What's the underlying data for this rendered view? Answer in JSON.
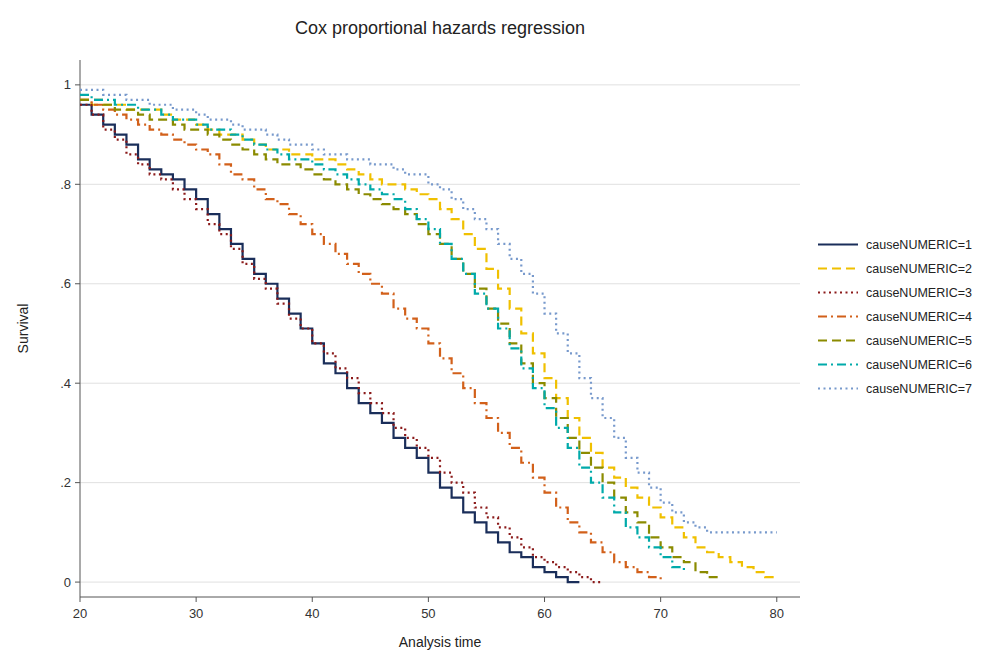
{
  "chart_data": {
    "type": "step",
    "title": "Cox proportional hazards regression",
    "x_label": "Analysis time",
    "y_label": "Survival",
    "xlim": [
      20,
      82
    ],
    "ylim": [
      -0.03,
      1.05
    ],
    "xticks": [
      20,
      30,
      40,
      50,
      60,
      70,
      80
    ],
    "yticks": [
      0,
      {
        "value": 0.2,
        "label": ".2"
      },
      {
        "value": 0.4,
        "label": ".4"
      },
      {
        "value": 0.6,
        "label": ".6"
      },
      {
        "value": 0.8,
        "label": ".8"
      },
      1
    ],
    "grid": true,
    "legend": "right",
    "series": [
      {
        "name": "causeNUMERIC=1",
        "color": "#1a2e5a",
        "line_style": "solid",
        "x": [
          20,
          21,
          22,
          23,
          24,
          25,
          26,
          27,
          28,
          29,
          30,
          31,
          32,
          33,
          34,
          35,
          36,
          37,
          38,
          39,
          40,
          41,
          42,
          43,
          44,
          45,
          46,
          47,
          48,
          49,
          50,
          51,
          52,
          53,
          54,
          55,
          56,
          57,
          58,
          59,
          60,
          61,
          62,
          63
        ],
        "values": [
          0.96,
          0.94,
          0.92,
          0.9,
          0.88,
          0.85,
          0.83,
          0.82,
          0.81,
          0.79,
          0.77,
          0.74,
          0.71,
          0.68,
          0.65,
          0.62,
          0.6,
          0.57,
          0.54,
          0.51,
          0.48,
          0.44,
          0.42,
          0.39,
          0.36,
          0.34,
          0.32,
          0.29,
          0.27,
          0.25,
          0.22,
          0.19,
          0.17,
          0.14,
          0.12,
          0.1,
          0.08,
          0.06,
          0.05,
          0.03,
          0.02,
          0.01,
          0.0,
          0.0
        ]
      },
      {
        "name": "causeNUMERIC=2",
        "color": "#f0c000",
        "line_style": "dashed",
        "x": [
          20,
          21,
          22,
          23,
          24,
          25,
          26,
          27,
          28,
          29,
          30,
          31,
          32,
          33,
          34,
          35,
          36,
          37,
          38,
          39,
          40,
          41,
          42,
          43,
          44,
          45,
          46,
          47,
          48,
          49,
          50,
          51,
          52,
          53,
          54,
          55,
          56,
          57,
          58,
          59,
          60,
          61,
          62,
          63,
          64,
          65,
          66,
          67,
          68,
          69,
          70,
          71,
          72,
          73,
          74,
          75,
          76,
          77,
          78,
          79,
          80
        ],
        "values": [
          0.97,
          0.96,
          0.96,
          0.96,
          0.95,
          0.95,
          0.95,
          0.94,
          0.93,
          0.93,
          0.92,
          0.91,
          0.9,
          0.9,
          0.89,
          0.88,
          0.87,
          0.87,
          0.86,
          0.86,
          0.85,
          0.85,
          0.84,
          0.83,
          0.82,
          0.81,
          0.8,
          0.8,
          0.79,
          0.78,
          0.77,
          0.75,
          0.73,
          0.7,
          0.67,
          0.63,
          0.59,
          0.55,
          0.5,
          0.46,
          0.41,
          0.37,
          0.33,
          0.29,
          0.26,
          0.23,
          0.21,
          0.19,
          0.17,
          0.15,
          0.13,
          0.11,
          0.09,
          0.07,
          0.06,
          0.05,
          0.04,
          0.03,
          0.02,
          0.01,
          0.01
        ]
      },
      {
        "name": "causeNUMERIC=3",
        "color": "#8b1a1a",
        "line_style": "dotted",
        "x": [
          20,
          21,
          22,
          23,
          24,
          25,
          26,
          27,
          28,
          29,
          30,
          31,
          32,
          33,
          34,
          35,
          36,
          37,
          38,
          39,
          40,
          41,
          42,
          43,
          44,
          45,
          46,
          47,
          48,
          49,
          50,
          51,
          52,
          53,
          54,
          55,
          56,
          57,
          58,
          59,
          60,
          61,
          62,
          63,
          64,
          65
        ],
        "values": [
          0.96,
          0.94,
          0.91,
          0.89,
          0.86,
          0.84,
          0.82,
          0.81,
          0.79,
          0.77,
          0.75,
          0.72,
          0.7,
          0.67,
          0.64,
          0.61,
          0.59,
          0.56,
          0.53,
          0.51,
          0.48,
          0.46,
          0.43,
          0.41,
          0.38,
          0.36,
          0.34,
          0.31,
          0.29,
          0.27,
          0.25,
          0.22,
          0.2,
          0.18,
          0.15,
          0.13,
          0.11,
          0.09,
          0.07,
          0.05,
          0.04,
          0.03,
          0.02,
          0.01,
          0.0,
          0.0
        ]
      },
      {
        "name": "causeNUMERIC=4",
        "color": "#d2601a",
        "line_style": "dashdot",
        "x": [
          20,
          21,
          22,
          23,
          24,
          25,
          26,
          27,
          28,
          29,
          30,
          31,
          32,
          33,
          34,
          35,
          36,
          37,
          38,
          39,
          40,
          41,
          42,
          43,
          44,
          45,
          46,
          47,
          48,
          49,
          50,
          51,
          52,
          53,
          54,
          55,
          56,
          57,
          58,
          59,
          60,
          61,
          62,
          63,
          64,
          65,
          66,
          67,
          68,
          69,
          70
        ],
        "values": [
          0.97,
          0.96,
          0.95,
          0.94,
          0.93,
          0.92,
          0.91,
          0.9,
          0.89,
          0.88,
          0.87,
          0.86,
          0.84,
          0.82,
          0.81,
          0.79,
          0.77,
          0.76,
          0.74,
          0.72,
          0.7,
          0.68,
          0.66,
          0.64,
          0.62,
          0.6,
          0.58,
          0.55,
          0.53,
          0.51,
          0.48,
          0.45,
          0.42,
          0.39,
          0.36,
          0.33,
          0.3,
          0.27,
          0.24,
          0.21,
          0.18,
          0.15,
          0.12,
          0.1,
          0.08,
          0.06,
          0.04,
          0.03,
          0.02,
          0.01,
          0.0
        ]
      },
      {
        "name": "causeNUMERIC=5",
        "color": "#8b8b00",
        "line_style": "dashed",
        "x": [
          20,
          21,
          22,
          23,
          24,
          25,
          26,
          27,
          28,
          29,
          30,
          31,
          32,
          33,
          34,
          35,
          36,
          37,
          38,
          39,
          40,
          41,
          42,
          43,
          44,
          45,
          46,
          47,
          48,
          49,
          50,
          51,
          52,
          53,
          54,
          55,
          56,
          57,
          58,
          59,
          60,
          61,
          62,
          63,
          64,
          65,
          66,
          67,
          68,
          69,
          70,
          71,
          72,
          73,
          74,
          75
        ],
        "values": [
          0.97,
          0.97,
          0.96,
          0.95,
          0.95,
          0.94,
          0.93,
          0.93,
          0.92,
          0.91,
          0.91,
          0.9,
          0.89,
          0.88,
          0.87,
          0.86,
          0.85,
          0.84,
          0.84,
          0.83,
          0.82,
          0.81,
          0.8,
          0.79,
          0.78,
          0.77,
          0.76,
          0.75,
          0.74,
          0.72,
          0.7,
          0.68,
          0.65,
          0.62,
          0.59,
          0.55,
          0.52,
          0.48,
          0.44,
          0.4,
          0.37,
          0.33,
          0.29,
          0.26,
          0.23,
          0.2,
          0.17,
          0.14,
          0.12,
          0.09,
          0.07,
          0.05,
          0.04,
          0.02,
          0.01,
          0.01
        ]
      },
      {
        "name": "causeNUMERIC=6",
        "color": "#00aaaa",
        "line_style": "dashdot",
        "x": [
          20,
          21,
          22,
          23,
          24,
          25,
          26,
          27,
          28,
          29,
          30,
          31,
          32,
          33,
          34,
          35,
          36,
          37,
          38,
          39,
          40,
          41,
          42,
          43,
          44,
          45,
          46,
          47,
          48,
          49,
          50,
          51,
          52,
          53,
          54,
          55,
          56,
          57,
          58,
          59,
          60,
          61,
          62,
          63,
          64,
          65,
          66,
          67,
          68,
          69,
          70,
          71,
          72
        ],
        "values": [
          0.98,
          0.97,
          0.97,
          0.96,
          0.96,
          0.95,
          0.95,
          0.94,
          0.93,
          0.93,
          0.92,
          0.91,
          0.91,
          0.9,
          0.89,
          0.88,
          0.87,
          0.86,
          0.85,
          0.85,
          0.84,
          0.83,
          0.82,
          0.81,
          0.8,
          0.79,
          0.78,
          0.77,
          0.75,
          0.73,
          0.71,
          0.68,
          0.65,
          0.62,
          0.58,
          0.55,
          0.51,
          0.47,
          0.43,
          0.39,
          0.35,
          0.31,
          0.27,
          0.23,
          0.2,
          0.17,
          0.14,
          0.11,
          0.09,
          0.07,
          0.05,
          0.03,
          0.02
        ]
      },
      {
        "name": "causeNUMERIC=7",
        "color": "#7799cc",
        "line_style": "dotted",
        "x": [
          20,
          21,
          22,
          23,
          24,
          25,
          26,
          27,
          28,
          29,
          30,
          31,
          32,
          33,
          34,
          35,
          36,
          37,
          38,
          39,
          40,
          41,
          42,
          43,
          44,
          45,
          46,
          47,
          48,
          49,
          50,
          51,
          52,
          53,
          54,
          55,
          56,
          57,
          58,
          59,
          60,
          61,
          62,
          63,
          64,
          65,
          66,
          67,
          68,
          69,
          70,
          71,
          72,
          73,
          74,
          75,
          76,
          77,
          78,
          79,
          80
        ],
        "values": [
          0.99,
          0.99,
          0.98,
          0.98,
          0.97,
          0.97,
          0.96,
          0.96,
          0.95,
          0.95,
          0.94,
          0.93,
          0.93,
          0.92,
          0.91,
          0.91,
          0.9,
          0.89,
          0.88,
          0.88,
          0.87,
          0.86,
          0.86,
          0.85,
          0.85,
          0.84,
          0.84,
          0.83,
          0.82,
          0.82,
          0.8,
          0.79,
          0.77,
          0.75,
          0.73,
          0.71,
          0.68,
          0.65,
          0.62,
          0.58,
          0.54,
          0.5,
          0.46,
          0.41,
          0.37,
          0.33,
          0.29,
          0.25,
          0.22,
          0.19,
          0.16,
          0.14,
          0.12,
          0.11,
          0.1,
          0.1,
          0.1,
          0.1,
          0.1,
          0.1,
          0.1
        ]
      }
    ]
  }
}
